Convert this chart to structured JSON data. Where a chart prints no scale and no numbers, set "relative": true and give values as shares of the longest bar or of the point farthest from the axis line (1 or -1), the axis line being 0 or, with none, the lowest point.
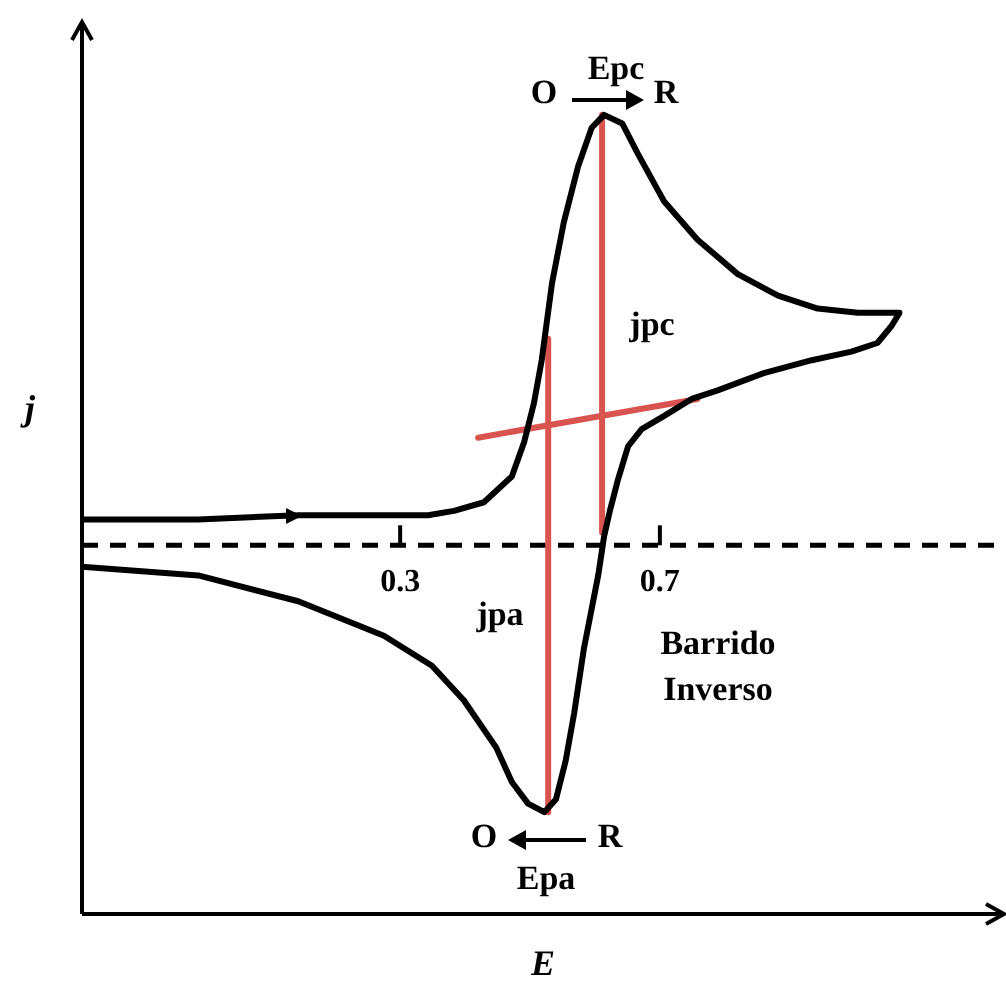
{
  "chart_data": {
    "type": "line",
    "xlabel": "E",
    "ylabel": "j",
    "relative": true,
    "xlim": [
      -0.19,
      1.23
    ],
    "xticks": [
      0.3,
      0.7
    ],
    "series": [
      {
        "color": "#000000",
        "x": [
          -0.19,
          -0.011,
          0.143,
          0.297,
          0.343,
          0.383,
          0.429,
          0.472,
          0.491,
          0.506,
          0.518,
          0.534,
          0.552,
          0.574,
          0.595,
          0.614,
          0.642,
          0.666,
          0.706,
          0.758,
          0.82,
          0.882,
          0.943,
          1.005,
          1.069,
          1.057,
          1.035,
          0.995,
          0.934,
          0.86,
          0.789,
          0.749,
          0.706,
          0.672,
          0.651,
          0.635,
          0.623,
          0.614,
          0.605,
          0.583,
          0.568,
          0.555,
          0.54,
          0.522,
          0.497,
          0.472,
          0.448,
          0.398,
          0.349,
          0.275,
          0.143,
          -0.011,
          -0.19
        ],
        "values": [
          0.06,
          0.06,
          0.07,
          0.07,
          0.07,
          0.08,
          0.1,
          0.16,
          0.24,
          0.33,
          0.43,
          0.61,
          0.75,
          0.88,
          0.97,
          1.0,
          0.98,
          0.91,
          0.8,
          0.71,
          0.63,
          0.58,
          0.55,
          0.54,
          0.54,
          0.51,
          0.47,
          0.45,
          0.43,
          0.4,
          0.36,
          0.34,
          0.3,
          0.27,
          0.23,
          0.15,
          0.08,
          0.02,
          -0.07,
          -0.24,
          -0.39,
          -0.5,
          -0.59,
          -0.62,
          -0.6,
          -0.55,
          -0.47,
          -0.36,
          -0.28,
          -0.21,
          -0.13,
          -0.07,
          -0.05
        ]
      },
      {
        "color": "#d9534f",
        "x": [
          0.528,
          0.528
        ],
        "values": [
          0.48,
          -0.62
        ]
      },
      {
        "color": "#d9534f",
        "x": [
          0.611,
          0.611
        ],
        "values": [
          1.0,
          0.03
        ]
      },
      {
        "color": "#d9534f",
        "x": [
          0.42,
          0.758
        ],
        "values": [
          0.25,
          0.34
        ]
      }
    ],
    "ref_lines": [
      {
        "axis": "y",
        "value": 0,
        "color": "#000000",
        "line_style": "dashed"
      }
    ],
    "annotations": [
      "O",
      "Epc",
      "R",
      "jpc",
      "jpa",
      "Barrido\nInverso",
      "O",
      "R",
      "Epa"
    ]
  }
}
